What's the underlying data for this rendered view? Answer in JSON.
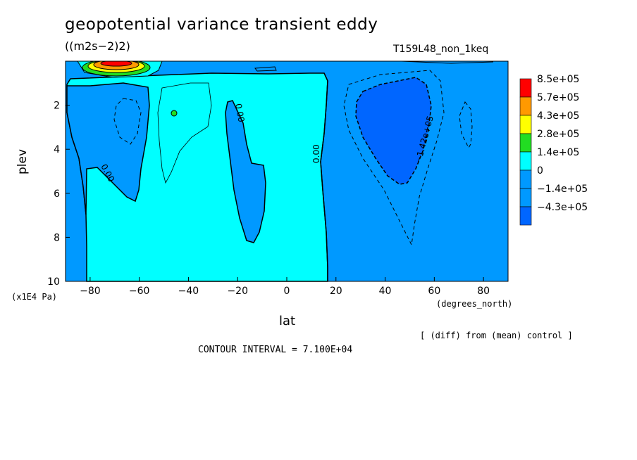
{
  "chart_data": {
    "type": "heatmap",
    "title": "geopotential variance transient eddy",
    "units": "((m2s−2)2)",
    "run_label": "T159L48_non_1keq",
    "xlabel": "lat",
    "x_units": "(degrees_north)",
    "ylabel": "plev",
    "y_units": "(x1E4 Pa)",
    "xlim": [
      -90,
      90
    ],
    "ylim": [
      10,
      0
    ],
    "x_ticks": [
      -80,
      -60,
      -40,
      -20,
      0,
      20,
      40,
      60,
      80
    ],
    "x_tick_labels": [
      "−80",
      "−60",
      "−40",
      "−20",
      "0",
      "20",
      "40",
      "60",
      "80"
    ],
    "y_ticks": [
      2,
      4,
      6,
      8,
      10
    ],
    "y_tick_labels": [
      "2",
      "4",
      "6",
      "8",
      "10"
    ],
    "contour_interval_text": "CONTOUR INTERVAL = 7.100E+04",
    "note": "[ (diff) from (mean) control ]",
    "legend": [
      {
        "label": "8.5e+05",
        "color": "#ff0000"
      },
      {
        "label": "5.7e+05",
        "color": "#ff9900"
      },
      {
        "label": "4.3e+05",
        "color": "#ffff00"
      },
      {
        "label": "2.8e+05",
        "color": "#22dd22"
      },
      {
        "label": "1.4e+05",
        "color": "#00ffff"
      },
      {
        "label": "0",
        "color": "#0099ff"
      },
      {
        "label": "−1.4e+05",
        "color": "#0099ff"
      },
      {
        "label": "−4.3e+05",
        "color": "#0066ff"
      }
    ],
    "legend_bottom_label": "−4.3e+05",
    "contour_labels": [
      "0.00",
      "0.00",
      "0.00",
      "−1.42e+05"
    ],
    "fill_colors": {
      "negative_weak": "#0099ff",
      "positive_weak": "#00ffff",
      "negative_strong": "#0066ff",
      "positive_green": "#22dd22",
      "positive_orange": "#ff9900",
      "positive_red": "#ff0000",
      "positive_yellow": "#ffff00"
    }
  }
}
